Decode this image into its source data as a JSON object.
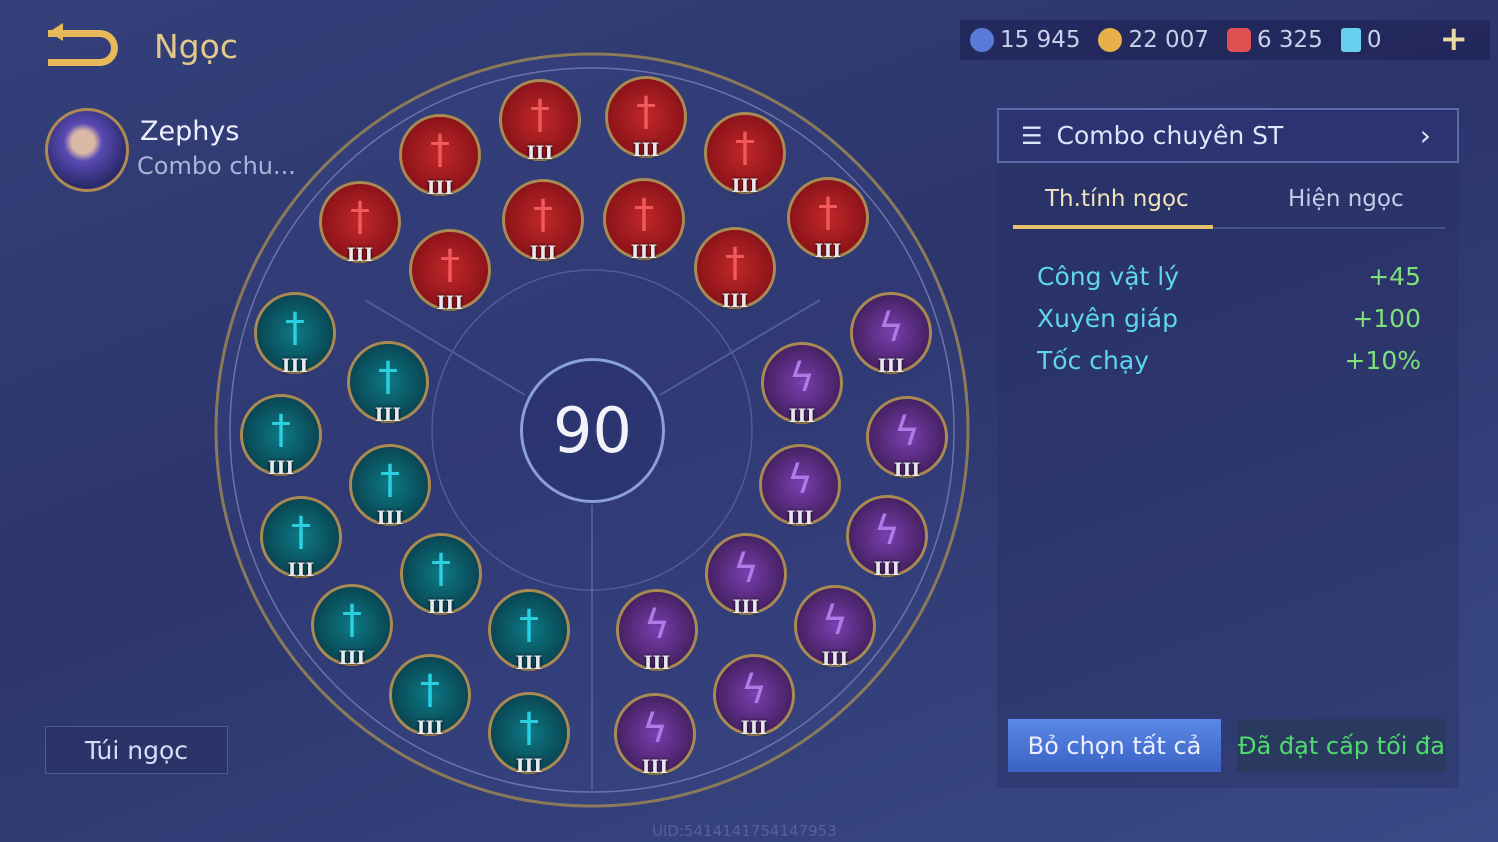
{
  "header": {
    "title": "Ngọc",
    "back_icon": "back-arrow-icon"
  },
  "currencies": [
    {
      "icon": "voucher-icon",
      "value": "15 945",
      "color": "#5a7ad8"
    },
    {
      "icon": "gold-icon",
      "value": "22 007",
      "color": "#e8b04a"
    },
    {
      "icon": "ruby-icon",
      "value": "6 325",
      "color": "#e05050"
    },
    {
      "icon": "card-icon",
      "value": "0",
      "color": "#6ad0f0"
    }
  ],
  "hero": {
    "name": "Zephys",
    "subtitle": "Combo chu..."
  },
  "bag_label": "Túi ngọc",
  "level": "90",
  "gems": [
    {
      "type": "red",
      "tier": "III"
    },
    {
      "type": "red",
      "tier": "III"
    },
    {
      "type": "red",
      "tier": "III"
    },
    {
      "type": "red",
      "tier": "III"
    },
    {
      "type": "red",
      "tier": "III"
    },
    {
      "type": "red",
      "tier": "III"
    },
    {
      "type": "red",
      "tier": "III"
    },
    {
      "type": "red",
      "tier": "III"
    },
    {
      "type": "red",
      "tier": "III"
    },
    {
      "type": "red",
      "tier": "III"
    },
    {
      "type": "teal",
      "tier": "III"
    },
    {
      "type": "teal",
      "tier": "III"
    },
    {
      "type": "teal",
      "tier": "III"
    },
    {
      "type": "teal",
      "tier": "III"
    },
    {
      "type": "teal",
      "tier": "III"
    },
    {
      "type": "teal",
      "tier": "III"
    },
    {
      "type": "teal",
      "tier": "III"
    },
    {
      "type": "teal",
      "tier": "III"
    },
    {
      "type": "teal",
      "tier": "III"
    },
    {
      "type": "teal",
      "tier": "III"
    },
    {
      "type": "purple",
      "tier": "III"
    },
    {
      "type": "purple",
      "tier": "III"
    },
    {
      "type": "purple",
      "tier": "III"
    },
    {
      "type": "purple",
      "tier": "III"
    },
    {
      "type": "purple",
      "tier": "III"
    },
    {
      "type": "purple",
      "tier": "III"
    },
    {
      "type": "purple",
      "tier": "III"
    },
    {
      "type": "purple",
      "tier": "III"
    },
    {
      "type": "purple",
      "tier": "III"
    },
    {
      "type": "purple",
      "tier": "III"
    }
  ],
  "panel": {
    "combo_label": "Combo chuyên ST",
    "tabs": [
      {
        "label": "Th.tính ngọc",
        "active": true
      },
      {
        "label": "Hiện ngọc",
        "active": false
      }
    ],
    "stats": [
      {
        "name": "Công vật lý",
        "value": "+45"
      },
      {
        "name": "Xuyên giáp",
        "value": "+100"
      },
      {
        "name": "Tốc chạy",
        "value": "+10%"
      }
    ],
    "deselect_label": "Bỏ chọn tất cả",
    "max_label": "Đã đạt cấp tối đa"
  },
  "uid": "UID:5414141754147953"
}
